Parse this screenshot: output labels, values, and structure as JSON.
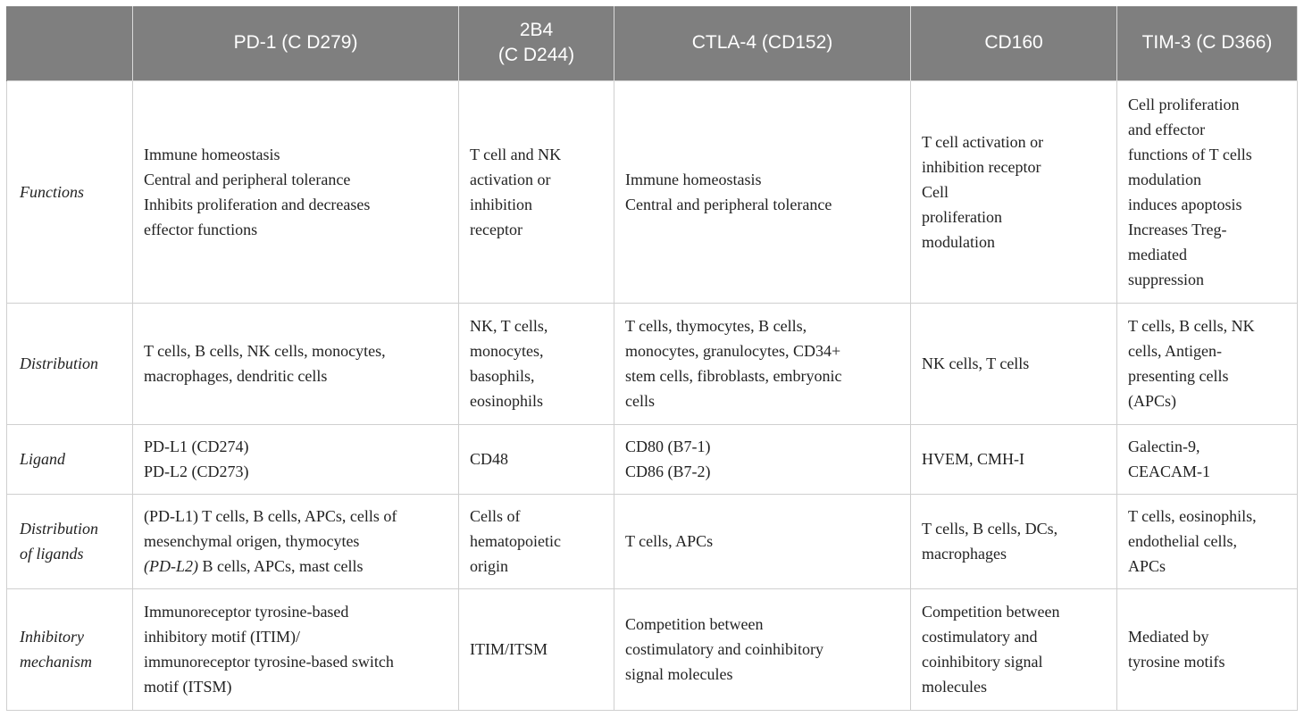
{
  "header": {
    "corner": "",
    "columns": [
      "PD-1 (C D279)",
      "2B4 (C D244)",
      "CTLA-4 (CD152)",
      "CD160",
      "TIM-3 (C D366)"
    ],
    "col_2b4_line1": "2B4",
    "col_2b4_line2": "(C D244)"
  },
  "rows": [
    {
      "label": "Functions",
      "cells": [
        [
          "Immune homeostasis",
          "Central and peripheral tolerance",
          "Inhibits proliferation and decreases",
          "effector functions"
        ],
        [
          "T cell and NK",
          "activation or",
          "inhibition",
          "receptor"
        ],
        [
          "Immune homeostasis",
          "Central and peripheral tolerance"
        ],
        [
          "T cell activation or",
          "inhibition receptor",
          "Cell",
          "proliferation",
          "modulation"
        ],
        [
          "Cell proliferation",
          "and effector",
          "functions of T cells",
          "modulation",
          "induces apoptosis",
          "Increases Treg-",
          "mediated",
          "suppression"
        ]
      ]
    },
    {
      "label": "Distribution",
      "cells": [
        [
          "T cells, B cells, NK cells, monocytes,",
          "macrophages, dendritic cells"
        ],
        [
          "NK, T cells,",
          "monocytes,",
          "basophils,",
          "eosinophils"
        ],
        [
          "T cells, thymocytes, B cells,",
          "monocytes, granulocytes, CD34+",
          "stem cells, fibroblasts, embryonic",
          "cells"
        ],
        [
          "NK cells, T cells"
        ],
        [
          "T cells, B cells, NK",
          "cells, Antigen-",
          "presenting cells",
          "(APCs)"
        ]
      ]
    },
    {
      "label": "Ligand",
      "cells": [
        [
          "PD-L1 (CD274)",
          "PD-L2 (CD273)"
        ],
        [
          "CD48"
        ],
        [
          "CD80 (B7-1)",
          "CD86 (B7-2)"
        ],
        [
          "HVEM, CMH-I"
        ],
        [
          "Galectin-9,",
          "CEACAM-1"
        ]
      ]
    },
    {
      "label_line1": "Distribution",
      "label_line2": "of ligands",
      "pd1_line1": "(PD-L1) T cells, B cells, APCs, cells of",
      "pd1_line2": "mesenchymal origen, thymocytes",
      "pd1_line3_italic": "(PD-L2)",
      "pd1_line3_rest": " B cells, APCs, mast cells",
      "cells": [
        [],
        [
          "Cells of",
          "hematopoietic",
          "origin"
        ],
        [
          "T cells, APCs"
        ],
        [
          "T cells, B cells, DCs,",
          "macrophages"
        ],
        [
          "T cells, eosinophils,",
          "endothelial cells,",
          "APCs"
        ]
      ]
    },
    {
      "label_line1": "Inhibitory",
      "label_line2": "mechanism",
      "cells": [
        [
          "Immunoreceptor tyrosine-based",
          "inhibitory motif (ITIM)/",
          "immunoreceptor tyrosine-based switch",
          "motif (ITSM)"
        ],
        [
          "ITIM/ITSM"
        ],
        [
          "Competition between",
          "costimulatory and coinhibitory",
          "signal molecules"
        ],
        [
          "Competition between",
          "costimulatory and",
          "coinhibitory signal",
          "molecules"
        ],
        [
          "Mediated by",
          "tyrosine motifs"
        ]
      ]
    }
  ]
}
